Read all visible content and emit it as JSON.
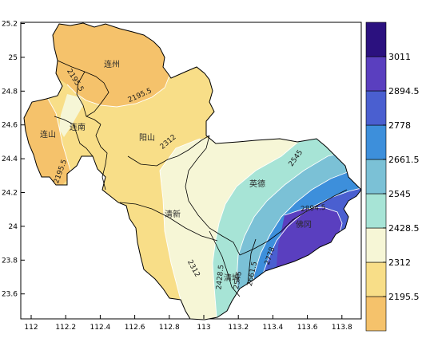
{
  "axes": {
    "x_ticks": [
      "112",
      "112.2",
      "112.4",
      "112.6",
      "112.8",
      "113",
      "113.2",
      "113.4",
      "113.6",
      "113.8"
    ],
    "y_ticks": [
      "25.2",
      "25",
      "24.8",
      "24.6",
      "24.4",
      "24.2",
      "24",
      "23.8",
      "23.6"
    ]
  },
  "colorbar": {
    "labels": [
      "3011",
      "2894.5",
      "2778",
      "2661.5",
      "2545",
      "2428.5",
      "2312",
      "2195.5"
    ],
    "colors": [
      "#f5c26b",
      "#f8de88",
      "#f6f6d6",
      "#a7e4d6",
      "#7bc1d6",
      "#3d8fdb",
      "#4a5fd0",
      "#5a3fbf",
      "#2b117f"
    ]
  },
  "regions": {
    "lianzhou": "连州",
    "liannan": "连南",
    "lianshan": "连山",
    "yangshan": "阳山",
    "qingxin": "清新",
    "yingde": "英德",
    "fogang": "佛冈",
    "qingcheng": "清城"
  },
  "contour_labels": {
    "c2195_a": "2195.5",
    "c2195_b": "2195.5",
    "c2195_c": "2195.5",
    "c2312_a": "2312",
    "c2312_b": "2312",
    "c2545_a": "2545",
    "c2545_b": "2545",
    "c2428_a": "2428.5",
    "c2661_a": "2661.5",
    "c2778_a": "2778",
    "c2894_a": "2894.5"
  }
}
